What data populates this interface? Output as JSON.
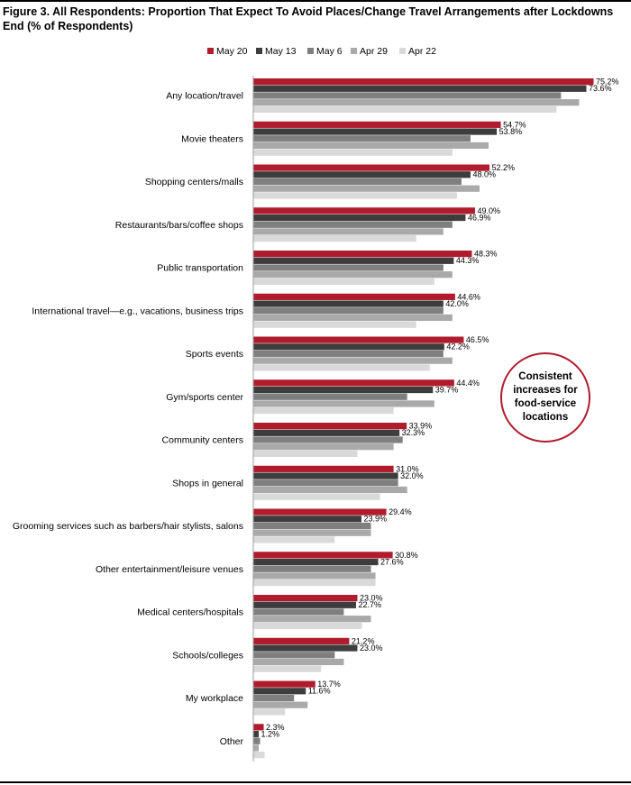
{
  "title": "Figure 3. All Respondents: Proportion That Expect To Avoid Places/Change Travel Arrangements after Lockdowns End (% of Respondents)",
  "callout": "Consistent increases for food-service locations",
  "chart_data": {
    "type": "bar",
    "orientation": "horizontal",
    "title": "Figure 3. All Respondents: Proportion That Expect To Avoid Places/Change Travel Arrangements after Lockdowns End (% of Respondents)",
    "categories": [
      "Any location/travel",
      "Movie theaters",
      "Shopping centers/malls",
      "Restaurants/bars/coffee shops",
      "Public transportation",
      "International travel—e.g., vacations, business trips",
      "Sports events",
      "Gym/sports center",
      "Community centers",
      "Shops in general",
      "Grooming services such as barbers/hair stylists, salons",
      "Other entertainment/leisure venues",
      "Medical centers/hospitals",
      "Schools/colleges",
      "My workplace",
      "Other"
    ],
    "series": [
      {
        "name": "May 20",
        "color": "#b01c2e",
        "labeled": true,
        "values": [
          75.2,
          54.7,
          52.2,
          49.0,
          48.3,
          44.6,
          46.5,
          44.4,
          33.9,
          31.0,
          29.4,
          30.8,
          23.0,
          21.2,
          13.7,
          2.3
        ]
      },
      {
        "name": "May 13",
        "color": "#3d3d3d",
        "labeled": true,
        "values": [
          73.6,
          53.8,
          48.0,
          46.9,
          44.3,
          42.0,
          42.2,
          39.7,
          32.3,
          32.0,
          23.9,
          27.6,
          22.7,
          23.0,
          11.6,
          1.2
        ]
      },
      {
        "name": "May 6",
        "color": "#7f7f7f",
        "labeled": false,
        "values": [
          68,
          48,
          46,
          44,
          42,
          42,
          42,
          34,
          33,
          32,
          26,
          26,
          20,
          18,
          9,
          1.5
        ]
      },
      {
        "name": "Apr 29",
        "color": "#a9a9a9",
        "labeled": false,
        "values": [
          72,
          52,
          50,
          42,
          44,
          44,
          44,
          40,
          31,
          34,
          26,
          27,
          26,
          20,
          12,
          1.2
        ]
      },
      {
        "name": "Apr 22",
        "color": "#d9d9d9",
        "labeled": false,
        "values": [
          67,
          44,
          45,
          36,
          40,
          36,
          39,
          31,
          23,
          28,
          18,
          27,
          24,
          15,
          7,
          2.5
        ]
      }
    ],
    "xlim": [
      0,
      80
    ],
    "grid": false,
    "legend_position": "top"
  }
}
